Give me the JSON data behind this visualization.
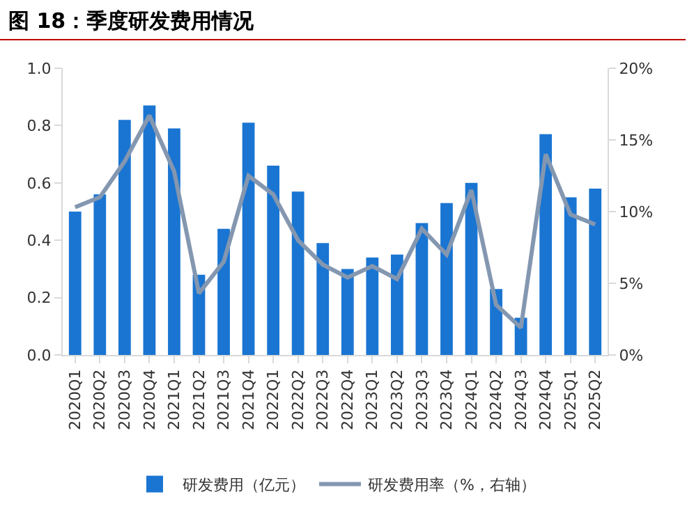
{
  "chart_data": {
    "type": "bar",
    "title": "图 18：季度研发费用情况",
    "categories": [
      "2020Q1",
      "2020Q2",
      "2020Q3",
      "2020Q4",
      "2021Q1",
      "2021Q2",
      "2021Q3",
      "2021Q4",
      "2022Q1",
      "2022Q2",
      "2022Q3",
      "2022Q4",
      "2023Q1",
      "2023Q2",
      "2023Q3",
      "2023Q4",
      "2024Q1",
      "2024Q2",
      "2024Q3",
      "2024Q4",
      "2025Q1",
      "2025Q2"
    ],
    "series": [
      {
        "name": "研发费用（亿元）",
        "color": "#1a75d2",
        "values": [
          0.5,
          0.56,
          0.82,
          0.87,
          0.79,
          0.28,
          0.44,
          0.81,
          0.66,
          0.57,
          0.39,
          0.3,
          0.34,
          0.35,
          0.46,
          0.53,
          0.6,
          0.23,
          0.13,
          0.77,
          0.55,
          0.58
        ]
      },
      {
        "name": "研发费用率（%，右轴）",
        "type": "line",
        "axis": "y2",
        "color": "#8497b0",
        "values": [
          10.3,
          11.0,
          13.5,
          16.7,
          12.8,
          4.3,
          6.5,
          12.5,
          11.2,
          8.0,
          6.3,
          5.4,
          6.2,
          5.3,
          8.8,
          7.0,
          11.5,
          3.5,
          1.9,
          14.0,
          9.8,
          9.1
        ]
      }
    ],
    "ylim": [
      0,
      1.0
    ],
    "yticks": [
      {
        "value": 0,
        "label": "0.0"
      },
      {
        "value": 0.2,
        "label": "0.2"
      },
      {
        "value": 0.4,
        "label": "0.4"
      },
      {
        "value": 0.6,
        "label": "0.6"
      },
      {
        "value": 0.8,
        "label": "0.8"
      },
      {
        "value": 1.0,
        "label": "1.0"
      }
    ],
    "y2lim": [
      0,
      20
    ],
    "y2ticks": [
      {
        "value": 0,
        "label": "0%"
      },
      {
        "value": 5,
        "label": "5%"
      },
      {
        "value": 10,
        "label": "10%"
      },
      {
        "value": 15,
        "label": "15%"
      },
      {
        "value": 20,
        "label": "20%"
      }
    ],
    "grid": false,
    "legend": "bottom",
    "marker": "none"
  }
}
